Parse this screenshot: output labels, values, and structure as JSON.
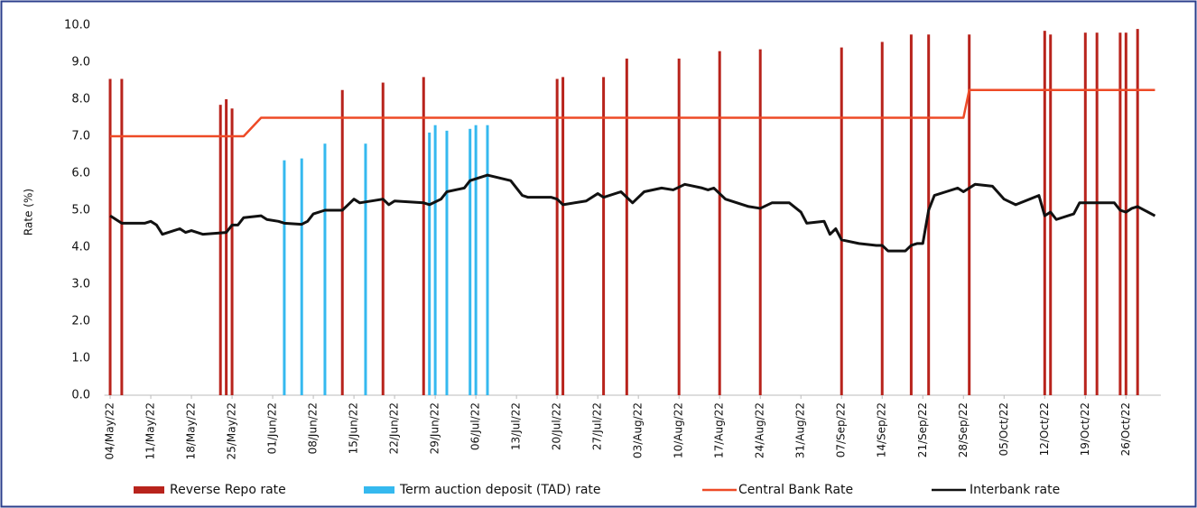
{
  "chart_data": {
    "type": "combo",
    "y_label": "Rate (%)",
    "xlim": [
      "2022-05-03",
      "2022-11-01"
    ],
    "ylim": [
      0,
      10
    ],
    "yticks": [
      {
        "value": 0,
        "label": "0.0"
      },
      {
        "value": 1,
        "label": "1.0"
      },
      {
        "value": 2,
        "label": "2.0"
      },
      {
        "value": 3,
        "label": "3.0"
      },
      {
        "value": 4,
        "label": "4.0"
      },
      {
        "value": 5,
        "label": "5.0"
      },
      {
        "value": 6,
        "label": "6.0"
      },
      {
        "value": 7,
        "label": "7.0"
      },
      {
        "value": 8,
        "label": "8.0"
      },
      {
        "value": 9,
        "label": "9.0"
      },
      {
        "value": 10,
        "label": "10.0"
      }
    ],
    "xticks": [
      {
        "value": "2022-05-04",
        "label": "04/May/22"
      },
      {
        "value": "2022-05-11",
        "label": "11/May/22"
      },
      {
        "value": "2022-05-18",
        "label": "18/May/22"
      },
      {
        "value": "2022-05-25",
        "label": "25/May/22"
      },
      {
        "value": "2022-06-01",
        "label": "01/Jun/22"
      },
      {
        "value": "2022-06-08",
        "label": "08/Jun/22"
      },
      {
        "value": "2022-06-15",
        "label": "15/Jun/22"
      },
      {
        "value": "2022-06-22",
        "label": "22/Jun/22"
      },
      {
        "value": "2022-06-29",
        "label": "29/Jun/22"
      },
      {
        "value": "2022-07-06",
        "label": "06/Jul/22"
      },
      {
        "value": "2022-07-13",
        "label": "13/Jul/22"
      },
      {
        "value": "2022-07-20",
        "label": "20/Jul/22"
      },
      {
        "value": "2022-07-27",
        "label": "27/Jul/22"
      },
      {
        "value": "2022-08-03",
        "label": "03/Aug/22"
      },
      {
        "value": "2022-08-10",
        "label": "10/Aug/22"
      },
      {
        "value": "2022-08-17",
        "label": "17/Aug/22"
      },
      {
        "value": "2022-08-24",
        "label": "24/Aug/22"
      },
      {
        "value": "2022-08-31",
        "label": "31/Aug/22"
      },
      {
        "value": "2022-09-07",
        "label": "07/Sep/22"
      },
      {
        "value": "2022-09-14",
        "label": "14/Sep/22"
      },
      {
        "value": "2022-09-21",
        "label": "21/Sep/22"
      },
      {
        "value": "2022-09-28",
        "label": "28/Sep/22"
      },
      {
        "value": "2022-10-05",
        "label": "05/Oct/22"
      },
      {
        "value": "2022-10-12",
        "label": "12/Oct/22"
      },
      {
        "value": "2022-10-19",
        "label": "19/Oct/22"
      },
      {
        "value": "2022-10-26",
        "label": "26/Oct/22"
      }
    ],
    "series": [
      {
        "name": "Reverse Repo rate",
        "type": "bar",
        "color": "#b8231c",
        "x": [
          "2022-05-04",
          "2022-05-06",
          "2022-05-23",
          "2022-05-24",
          "2022-05-25",
          "2022-06-13",
          "2022-06-20",
          "2022-06-27",
          "2022-07-20",
          "2022-07-21",
          "2022-07-28",
          "2022-08-01",
          "2022-08-10",
          "2022-08-17",
          "2022-08-24",
          "2022-09-07",
          "2022-09-14",
          "2022-09-19",
          "2022-09-22",
          "2022-09-29",
          "2022-10-12",
          "2022-10-13",
          "2022-10-19",
          "2022-10-21",
          "2022-10-25",
          "2022-10-26",
          "2022-10-28"
        ],
        "values": [
          8.55,
          8.55,
          7.85,
          8.0,
          7.75,
          8.25,
          8.45,
          8.6,
          8.55,
          8.6,
          8.6,
          9.1,
          9.1,
          9.3,
          9.35,
          9.4,
          9.55,
          9.75,
          9.75,
          9.75,
          9.85,
          9.75,
          9.8,
          9.8,
          9.8,
          9.8,
          9.9
        ]
      },
      {
        "name": "Term auction deposit (TAD) rate",
        "type": "bar",
        "color": "#35b9ef",
        "x": [
          "2022-06-03",
          "2022-06-06",
          "2022-06-10",
          "2022-06-17",
          "2022-06-28",
          "2022-06-29",
          "2022-07-01",
          "2022-07-05",
          "2022-07-06",
          "2022-07-08"
        ],
        "values": [
          6.35,
          6.4,
          6.8,
          6.8,
          7.1,
          7.3,
          7.15,
          7.2,
          7.3,
          7.3
        ]
      },
      {
        "name": "Central Bank Rate",
        "type": "line",
        "color": "#ee4a26",
        "x": [
          "2022-05-04",
          "2022-05-27",
          "2022-05-30",
          "2022-09-28",
          "2022-09-29",
          "2022-10-31"
        ],
        "values": [
          7.0,
          7.0,
          7.5,
          7.5,
          8.25,
          8.25
        ]
      },
      {
        "name": "Interbank rate",
        "type": "line",
        "color": "#111111",
        "x": [
          "2022-05-04",
          "2022-05-06",
          "2022-05-10",
          "2022-05-11",
          "2022-05-12",
          "2022-05-13",
          "2022-05-16",
          "2022-05-17",
          "2022-05-18",
          "2022-05-20",
          "2022-05-24",
          "2022-05-25",
          "2022-05-26",
          "2022-05-27",
          "2022-05-30",
          "2022-05-31",
          "2022-06-02",
          "2022-06-03",
          "2022-06-06",
          "2022-06-07",
          "2022-06-08",
          "2022-06-10",
          "2022-06-13",
          "2022-06-15",
          "2022-06-16",
          "2022-06-20",
          "2022-06-21",
          "2022-06-22",
          "2022-06-27",
          "2022-06-28",
          "2022-06-30",
          "2022-07-01",
          "2022-07-04",
          "2022-07-05",
          "2022-07-08",
          "2022-07-12",
          "2022-07-14",
          "2022-07-15",
          "2022-07-19",
          "2022-07-20",
          "2022-07-21",
          "2022-07-25",
          "2022-07-27",
          "2022-07-28",
          "2022-07-31",
          "2022-08-02",
          "2022-08-04",
          "2022-08-07",
          "2022-08-09",
          "2022-08-11",
          "2022-08-14",
          "2022-08-15",
          "2022-08-16",
          "2022-08-18",
          "2022-08-22",
          "2022-08-24",
          "2022-08-26",
          "2022-08-29",
          "2022-08-31",
          "2022-09-01",
          "2022-09-04",
          "2022-09-05",
          "2022-09-06",
          "2022-09-07",
          "2022-09-10",
          "2022-09-13",
          "2022-09-14",
          "2022-09-15",
          "2022-09-18",
          "2022-09-19",
          "2022-09-20",
          "2022-09-21",
          "2022-09-22",
          "2022-09-23",
          "2022-09-25",
          "2022-09-27",
          "2022-09-28",
          "2022-09-30",
          "2022-10-03",
          "2022-10-05",
          "2022-10-07",
          "2022-10-11",
          "2022-10-12",
          "2022-10-13",
          "2022-10-14",
          "2022-10-17",
          "2022-10-18",
          "2022-10-24",
          "2022-10-25",
          "2022-10-26",
          "2022-10-27",
          "2022-10-28",
          "2022-10-31"
        ],
        "values": [
          4.85,
          4.65,
          4.65,
          4.7,
          4.6,
          4.35,
          4.5,
          4.4,
          4.45,
          4.35,
          4.4,
          4.6,
          4.6,
          4.8,
          4.85,
          4.75,
          4.7,
          4.65,
          4.62,
          4.7,
          4.9,
          5.0,
          5.0,
          5.3,
          5.2,
          5.3,
          5.15,
          5.25,
          5.2,
          5.15,
          5.3,
          5.5,
          5.6,
          5.8,
          5.95,
          5.8,
          5.4,
          5.35,
          5.35,
          5.3,
          5.15,
          5.25,
          5.45,
          5.35,
          5.5,
          5.2,
          5.5,
          5.6,
          5.55,
          5.7,
          5.6,
          5.55,
          5.6,
          5.3,
          5.1,
          5.05,
          5.2,
          5.2,
          4.95,
          4.65,
          4.7,
          4.35,
          4.5,
          4.2,
          4.1,
          4.05,
          4.05,
          3.9,
          3.9,
          4.05,
          4.1,
          4.1,
          5.0,
          5.4,
          5.5,
          5.6,
          5.5,
          5.7,
          5.65,
          5.3,
          5.15,
          5.4,
          4.85,
          4.95,
          4.75,
          4.9,
          5.2,
          5.2,
          5.0,
          4.95,
          5.05,
          5.1,
          4.85
        ]
      }
    ]
  }
}
